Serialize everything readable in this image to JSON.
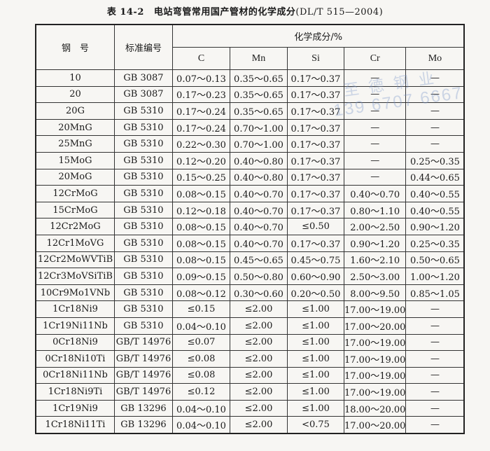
{
  "title": {
    "number": "表 14-2",
    "text": "电站弯管常用国产管材的化学成分",
    "standard": "(DL/T 515—2004)"
  },
  "watermark": {
    "name": "至德钢业",
    "phone": "139 6707 6667"
  },
  "table": {
    "headers": {
      "steel_grade": "钢　号",
      "standard_no": "标准编号",
      "composition": "化学成分/%",
      "elements": [
        "C",
        "Mn",
        "Si",
        "Cr",
        "Mo"
      ]
    },
    "rows": [
      [
        "10",
        "GB 3087",
        "0.07～0.13",
        "0.35～0.65",
        "0.17～0.37",
        "—",
        "—"
      ],
      [
        "20",
        "GB 3087",
        "0.17～0.23",
        "0.35～0.65",
        "0.17～0.37",
        "—",
        "—"
      ],
      [
        "20G",
        "GB 5310",
        "0.17～0.24",
        "0.35～0.65",
        "0.17～0.37",
        "—",
        "—"
      ],
      [
        "20MnG",
        "GB 5310",
        "0.17～0.24",
        "0.70～1.00",
        "0.17～0.37",
        "—",
        "—"
      ],
      [
        "25MnG",
        "GB 5310",
        "0.22～0.30",
        "0.70～1.00",
        "0.17～0.37",
        "—",
        "—"
      ],
      [
        "15MoG",
        "GB 5310",
        "0.12～0.20",
        "0.40～0.80",
        "0.17～0.37",
        "—",
        "0.25～0.35"
      ],
      [
        "20MoG",
        "GB 5310",
        "0.15～0.25",
        "0.40～0.80",
        "0.17～0.37",
        "—",
        "0.44～0.65"
      ],
      [
        "12CrMoG",
        "GB 5310",
        "0.08～0.15",
        "0.40～0.70",
        "0.17～0.37",
        "0.40～0.70",
        "0.40～0.55"
      ],
      [
        "15CrMoG",
        "GB 5310",
        "0.12～0.18",
        "0.40～0.70",
        "0.17～0.37",
        "0.80～1.10",
        "0.40～0.55"
      ],
      [
        "12Cr2MoG",
        "GB 5310",
        "0.08～0.15",
        "0.40～0.70",
        "≤0.50",
        "2.00～2.50",
        "0.90～1.20"
      ],
      [
        "12Cr1MoVG",
        "GB 5310",
        "0.08～0.15",
        "0.40～0.70",
        "0.17～0.37",
        "0.90～1.20",
        "0.25～0.35"
      ],
      [
        "12Cr2MoWVTiB",
        "GB 5310",
        "0.08～0.15",
        "0.45～0.65",
        "0.45～0.75",
        "1.60～2.10",
        "0.50～0.65"
      ],
      [
        "12Cr3MoVSiTiB",
        "GB 5310",
        "0.09～0.15",
        "0.50～0.80",
        "0.60～0.90",
        "2.50～3.00",
        "1.00～1.20"
      ],
      [
        "10Cr9Mo1VNb",
        "GB 5310",
        "0.08～0.12",
        "0.30～0.60",
        "0.20～0.50",
        "8.00～9.50",
        "0.85～1.05"
      ],
      [
        "1Cr18Ni9",
        "GB 5310",
        "≤0.15",
        "≤2.00",
        "≤1.00",
        "17.00～19.00",
        "—"
      ],
      [
        "1Cr19Ni11Nb",
        "GB 5310",
        "0.04～0.10",
        "≤2.00",
        "≤1.00",
        "17.00～20.00",
        "—"
      ],
      [
        "0Cr18Ni9",
        "GB/T 14976",
        "≤0.07",
        "≤2.00",
        "≤1.00",
        "17.00～19.00",
        "—"
      ],
      [
        "0Cr18Ni10Ti",
        "GB/T 14976",
        "≤0.08",
        "≤2.00",
        "≤1.00",
        "17.00～19.00",
        "—"
      ],
      [
        "0Cr18Ni11Nb",
        "GB/T 14976",
        "≤0.08",
        "≤2.00",
        "≤1.00",
        "17.00～19.00",
        "—"
      ],
      [
        "1Cr18Ni9Ti",
        "GB/T 14976",
        "≤0.12",
        "≤2.00",
        "≤1.00",
        "17.00～19.00",
        "—"
      ],
      [
        "1Cr19Ni9",
        "GB 13296",
        "0.04～0.10",
        "≤2.00",
        "≤1.00",
        "18.00～20.00",
        "—"
      ],
      [
        "1Cr18Ni11Ti",
        "GB 13296",
        "0.04～0.10",
        "≤2.00",
        "<0.75",
        "17.00～20.00",
        "—"
      ]
    ]
  }
}
